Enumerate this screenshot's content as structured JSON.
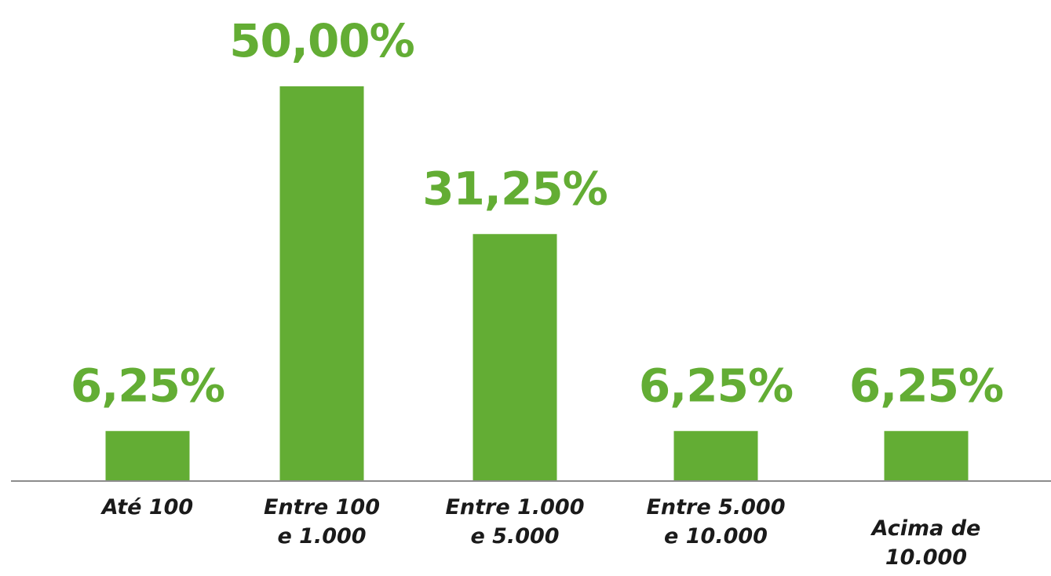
{
  "chart_data": {
    "type": "bar",
    "categories": [
      [
        "Até 100"
      ],
      [
        "Entre 100",
        "e 1.000"
      ],
      [
        "Entre 1.000",
        "e 5.000"
      ],
      [
        "Entre 5.000",
        "e 10.000"
      ],
      [
        "Acima de",
        "10.000"
      ]
    ],
    "values": [
      6.25,
      50.0,
      31.25,
      6.25,
      6.25
    ],
    "value_labels": [
      "6,25%",
      "50,00%",
      "31,25%",
      "6,25%",
      "6,25%"
    ],
    "title": "",
    "xlabel": "",
    "ylabel": "",
    "ylim": [
      0,
      50
    ],
    "grid": false,
    "legend": "none",
    "colors": {
      "bar": "#63AD34",
      "value_label": "#63AD34",
      "axis": "#8c8c8c",
      "category_label": "#1a1a1a"
    }
  }
}
